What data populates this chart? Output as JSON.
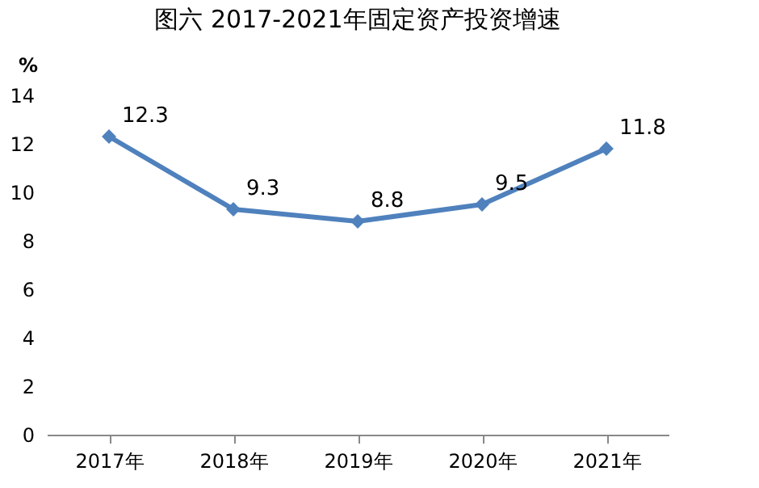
{
  "chart_data": {
    "type": "line",
    "title": "图六    2017-2021年固定资产投资增速",
    "ylabel": "%",
    "categories": [
      "2017年",
      "2018年",
      "2019年",
      "2020年",
      "2021年"
    ],
    "series": [
      {
        "color": "#4f81bd",
        "values": [
          12.3,
          9.3,
          8.8,
          9.5,
          11.8
        ]
      }
    ],
    "ylim": [
      0,
      14
    ],
    "yticks": [
      0,
      2,
      4,
      6,
      8,
      10,
      12,
      14
    ],
    "grid": false,
    "legend": false,
    "marker": "diamond",
    "line_style": "solid",
    "data_labels": true
  }
}
